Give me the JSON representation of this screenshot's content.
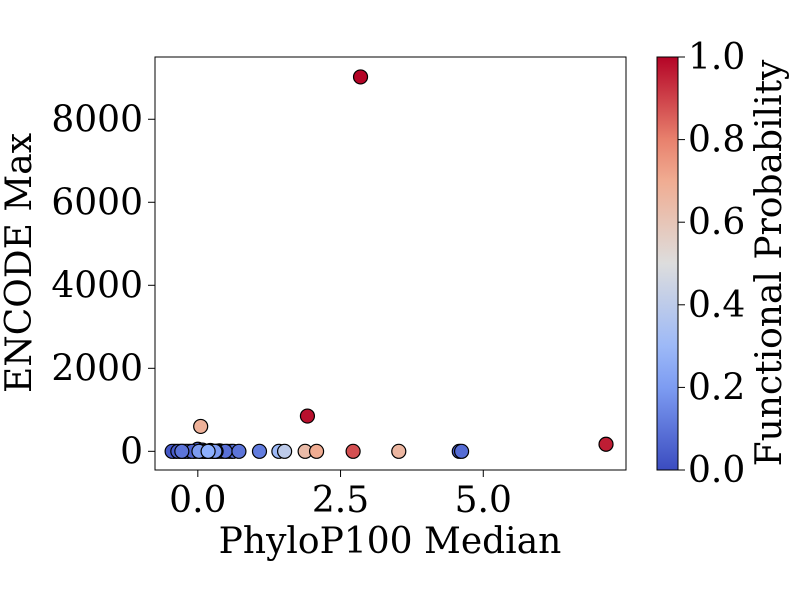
{
  "chart_data": {
    "type": "scatter",
    "xlabel": "PhyloP100 Median",
    "ylabel": "ENCODE Max",
    "xlim": [
      -0.75,
      7.5
    ],
    "ylim": [
      -450,
      9500
    ],
    "xticks": [
      0.0,
      2.5,
      5.0
    ],
    "xtick_labels": [
      "0.0",
      "2.5",
      "5.0"
    ],
    "yticks": [
      0,
      2000,
      4000,
      6000,
      8000
    ],
    "ytick_labels": [
      "0",
      "2000",
      "4000",
      "6000",
      "8000"
    ],
    "grid": false,
    "colorbar": {
      "label": "Functional Probability",
      "range": [
        0.0,
        1.0
      ],
      "ticks": [
        0.0,
        0.2,
        0.4,
        0.6,
        0.8,
        1.0
      ],
      "tick_labels": [
        "0.0",
        "0.2",
        "0.4",
        "0.6",
        "0.8",
        "1.0"
      ],
      "colormap": "coolwarm"
    },
    "points": [
      {
        "x": 2.85,
        "y": 9020,
        "p": 1.0
      },
      {
        "x": 1.92,
        "y": 850,
        "p": 0.98
      },
      {
        "x": 0.05,
        "y": 600,
        "p": 0.68
      },
      {
        "x": 7.15,
        "y": 170,
        "p": 0.96
      },
      {
        "x": 2.72,
        "y": 0,
        "p": 0.88
      },
      {
        "x": 3.52,
        "y": 0,
        "p": 0.66
      },
      {
        "x": 2.08,
        "y": 0,
        "p": 0.7
      },
      {
        "x": 1.88,
        "y": 0,
        "p": 0.64
      },
      {
        "x": 1.52,
        "y": 0,
        "p": 0.4
      },
      {
        "x": 1.42,
        "y": 0,
        "p": 0.3
      },
      {
        "x": 4.58,
        "y": 0,
        "p": 0.05
      },
      {
        "x": 4.62,
        "y": 0,
        "p": 0.08
      },
      {
        "x": 1.08,
        "y": 0,
        "p": 0.12
      },
      {
        "x": 0.72,
        "y": 0,
        "p": 0.1
      },
      {
        "x": 0.62,
        "y": 0,
        "p": 0.08
      },
      {
        "x": 0.52,
        "y": 0,
        "p": 0.05
      },
      {
        "x": 0.42,
        "y": 0,
        "p": 0.06
      },
      {
        "x": 0.35,
        "y": 0,
        "p": 0.04
      },
      {
        "x": 0.3,
        "y": 0,
        "p": 0.2
      },
      {
        "x": 0.25,
        "y": 0,
        "p": 0.03
      },
      {
        "x": 0.2,
        "y": 0,
        "p": 0.1
      },
      {
        "x": 0.15,
        "y": 0,
        "p": 0.05
      },
      {
        "x": 0.1,
        "y": 0,
        "p": 0.02
      },
      {
        "x": 0.05,
        "y": 0,
        "p": 0.08
      },
      {
        "x": 0.0,
        "y": 50,
        "p": 0.04
      },
      {
        "x": -0.05,
        "y": 0,
        "p": 0.03
      },
      {
        "x": -0.1,
        "y": 0,
        "p": 0.06
      },
      {
        "x": -0.15,
        "y": 0,
        "p": 0.02
      },
      {
        "x": -0.2,
        "y": 0,
        "p": 0.05
      },
      {
        "x": -0.25,
        "y": 0,
        "p": 0.03
      },
      {
        "x": -0.3,
        "y": 0,
        "p": 0.02
      },
      {
        "x": -0.35,
        "y": 0,
        "p": 0.04
      },
      {
        "x": -0.4,
        "y": 0,
        "p": 0.02
      },
      {
        "x": -0.45,
        "y": 0,
        "p": 0.03
      },
      {
        "x": 0.22,
        "y": 20,
        "p": 0.07
      },
      {
        "x": 0.38,
        "y": 10,
        "p": 0.05
      },
      {
        "x": 0.12,
        "y": 0,
        "p": 0.15
      },
      {
        "x": 0.28,
        "y": 0,
        "p": 0.18
      },
      {
        "x": 0.18,
        "y": 0,
        "p": 0.25
      },
      {
        "x": 0.32,
        "y": 0,
        "p": 0.14
      },
      {
        "x": -0.28,
        "y": 0,
        "p": 0.1
      },
      {
        "x": 0.48,
        "y": 0,
        "p": 0.09
      },
      {
        "x": 0.58,
        "y": 0,
        "p": 0.03
      },
      {
        "x": 0.02,
        "y": 0,
        "p": 0.2
      },
      {
        "x": 0.08,
        "y": 30,
        "p": 0.06
      }
    ]
  }
}
